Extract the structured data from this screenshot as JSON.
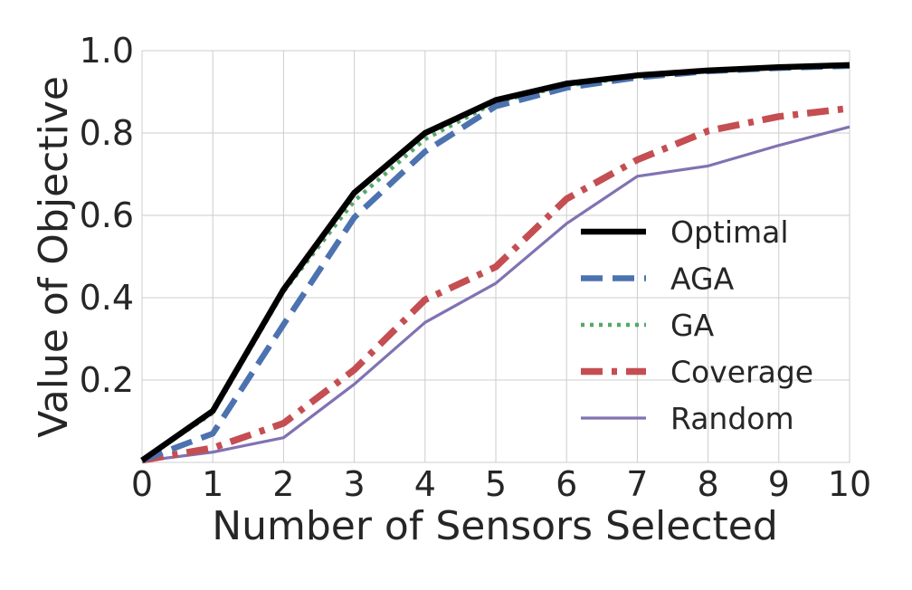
{
  "chart_data": {
    "type": "line",
    "title": "",
    "xlabel": "Number of Sensors Selected",
    "ylabel": "Value of Objective",
    "xlim": [
      0,
      10
    ],
    "ylim": [
      0.0,
      1.0
    ],
    "x_ticks": [
      0,
      1,
      2,
      3,
      4,
      5,
      6,
      7,
      8,
      9,
      10
    ],
    "y_ticks": [
      0.2,
      0.4,
      0.6,
      0.8,
      1.0
    ],
    "x_tick_labels": [
      "0",
      "1",
      "2",
      "3",
      "4",
      "5",
      "6",
      "7",
      "8",
      "9",
      "10"
    ],
    "y_tick_labels": [
      "0.2",
      "0.4",
      "0.6",
      "0.8",
      "1.0"
    ],
    "grid": true,
    "legend_position": "center-right",
    "x": [
      0,
      1,
      2,
      3,
      4,
      5,
      6,
      7,
      8,
      9,
      10
    ],
    "series": [
      {
        "name": "Optimal",
        "color": "#000000",
        "style": "solid",
        "values": [
          0.005,
          0.125,
          0.42,
          0.655,
          0.8,
          0.88,
          0.92,
          0.94,
          0.952,
          0.96,
          0.965
        ]
      },
      {
        "name": "AGA",
        "color": "#4C72B0",
        "style": "dashed",
        "values": [
          0.005,
          0.07,
          0.335,
          0.595,
          0.755,
          0.865,
          0.91,
          0.935,
          0.95,
          0.958,
          0.963
        ]
      },
      {
        "name": "GA",
        "color": "#55A868",
        "style": "dotted",
        "values": [
          0.005,
          0.12,
          0.415,
          0.635,
          0.785,
          0.875,
          0.915,
          0.937,
          0.951,
          0.959,
          0.964
        ]
      },
      {
        "name": "Coverage",
        "color": "#C44E52",
        "style": "dashdot",
        "values": [
          0.005,
          0.035,
          0.095,
          0.225,
          0.395,
          0.475,
          0.64,
          0.735,
          0.805,
          0.84,
          0.86
        ]
      },
      {
        "name": "Random",
        "color": "#8172B2",
        "style": "solid-thin",
        "values": [
          0.003,
          0.025,
          0.06,
          0.19,
          0.34,
          0.435,
          0.58,
          0.695,
          0.72,
          0.77,
          0.815
        ]
      }
    ]
  }
}
